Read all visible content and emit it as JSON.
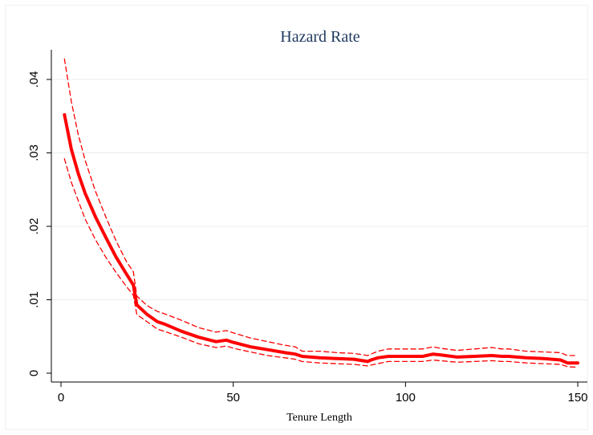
{
  "chart_data": {
    "type": "line",
    "title": "Hazard Rate",
    "xlabel": "Tenure Length",
    "ylabel": "",
    "xlim": [
      0,
      150
    ],
    "ylim": [
      0,
      0.04
    ],
    "x_ticks": [
      0,
      50,
      100,
      150
    ],
    "x_tick_labels": [
      "0",
      "50",
      "100",
      "150"
    ],
    "y_ticks": [
      0,
      0.01,
      0.02,
      0.03,
      0.04
    ],
    "y_tick_labels": [
      "0",
      ".01",
      ".02",
      ".03",
      ".04"
    ],
    "grid": true,
    "colors": {
      "series": "#ff0000",
      "title": "#1f3a5f",
      "grid": "#e8ecef"
    },
    "series": [
      {
        "style": "solid",
        "x": [
          1,
          3,
          5,
          7,
          10,
          13,
          16,
          19,
          21,
          22,
          25,
          28,
          30,
          35,
          40,
          45,
          48,
          50,
          55,
          60,
          65,
          68,
          70,
          75,
          80,
          85,
          89,
          90,
          92,
          95,
          100,
          105,
          108,
          110,
          115,
          120,
          125,
          128,
          130,
          135,
          140,
          145,
          147,
          150
        ],
        "y": [
          0.0352,
          0.0305,
          0.0272,
          0.0245,
          0.0213,
          0.0185,
          0.0158,
          0.0135,
          0.012,
          0.0093,
          0.008,
          0.007,
          0.0067,
          0.0057,
          0.0049,
          0.0043,
          0.0045,
          0.0042,
          0.0036,
          0.0032,
          0.0028,
          0.0026,
          0.0023,
          0.0021,
          0.002,
          0.0019,
          0.0016,
          0.0018,
          0.0021,
          0.0023,
          0.0023,
          0.0023,
          0.0026,
          0.0025,
          0.0022,
          0.0023,
          0.0024,
          0.0023,
          0.0023,
          0.0021,
          0.002,
          0.0018,
          0.0014,
          0.0014
        ]
      },
      {
        "style": "dashed",
        "x": [
          1,
          3,
          5,
          7,
          10,
          13,
          16,
          19,
          21,
          22,
          25,
          28,
          30,
          35,
          40,
          45,
          48,
          50,
          55,
          60,
          65,
          68,
          70,
          75,
          80,
          85,
          89,
          90,
          92,
          95,
          100,
          105,
          108,
          110,
          115,
          120,
          125,
          128,
          130,
          135,
          140,
          145,
          147,
          150
        ],
        "y": [
          0.0428,
          0.037,
          0.0325,
          0.029,
          0.0248,
          0.0213,
          0.018,
          0.0152,
          0.0138,
          0.0105,
          0.0092,
          0.0084,
          0.0081,
          0.0072,
          0.0062,
          0.0056,
          0.0058,
          0.0055,
          0.0048,
          0.0043,
          0.0038,
          0.0036,
          0.003,
          0.003,
          0.0028,
          0.0027,
          0.0024,
          0.0026,
          0.003,
          0.0033,
          0.0033,
          0.0033,
          0.0036,
          0.0034,
          0.0031,
          0.0033,
          0.0035,
          0.0033,
          0.0033,
          0.003,
          0.0029,
          0.0028,
          0.0024,
          0.0024
        ]
      },
      {
        "style": "dashed",
        "x": [
          1,
          3,
          5,
          7,
          10,
          13,
          16,
          19,
          21,
          22,
          25,
          28,
          30,
          35,
          40,
          45,
          48,
          50,
          55,
          60,
          65,
          68,
          70,
          75,
          80,
          85,
          89,
          90,
          92,
          95,
          100,
          105,
          108,
          110,
          115,
          120,
          125,
          128,
          130,
          135,
          140,
          145,
          147,
          150
        ],
        "y": [
          0.0292,
          0.026,
          0.0235,
          0.021,
          0.0182,
          0.0158,
          0.0137,
          0.0118,
          0.0106,
          0.008,
          0.007,
          0.006,
          0.0057,
          0.0049,
          0.004,
          0.0035,
          0.0037,
          0.0034,
          0.0029,
          0.0024,
          0.0021,
          0.0019,
          0.0016,
          0.0014,
          0.0013,
          0.0012,
          0.001,
          0.0011,
          0.0013,
          0.0016,
          0.0016,
          0.0016,
          0.0018,
          0.0017,
          0.0015,
          0.0016,
          0.0017,
          0.0016,
          0.0016,
          0.0014,
          0.0013,
          0.0012,
          0.0009,
          0.0008
        ]
      }
    ]
  }
}
